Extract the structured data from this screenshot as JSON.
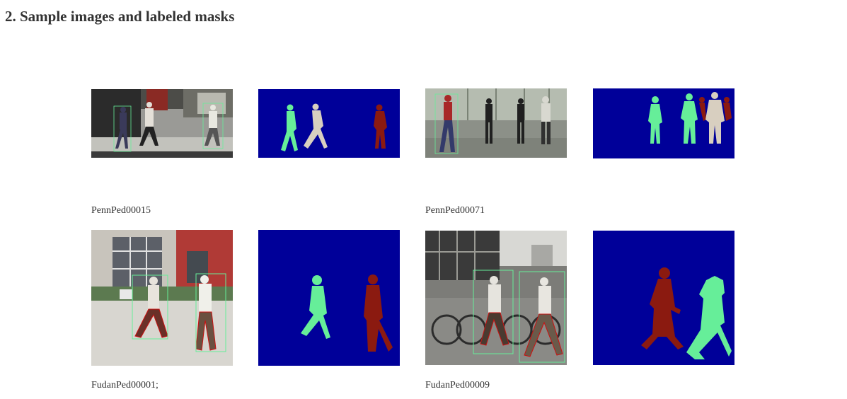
{
  "section": {
    "title": "2. Sample images and labeled masks"
  },
  "samples": [
    {
      "caption": "PennPed00015",
      "photo_icon": "street-pedestrians-photo",
      "mask_icon": "pedestrian-segmentation-mask"
    },
    {
      "caption": "PennPed00071",
      "photo_icon": "street-pedestrians-photo",
      "mask_icon": "pedestrian-segmentation-mask"
    },
    {
      "caption": "FudanPed00001;",
      "photo_icon": "street-pedestrians-photo",
      "mask_icon": "pedestrian-segmentation-mask"
    },
    {
      "caption": "FudanPed00009",
      "photo_icon": "street-pedestrians-photo",
      "mask_icon": "pedestrian-segmentation-mask"
    }
  ],
  "colors": {
    "mask_background": "#000099",
    "mask_green": "#66ee99",
    "mask_beige": "#d8cfc0",
    "mask_red": "#8b1a10",
    "box_outline": "#66ee99",
    "contour": "#cc1111"
  }
}
